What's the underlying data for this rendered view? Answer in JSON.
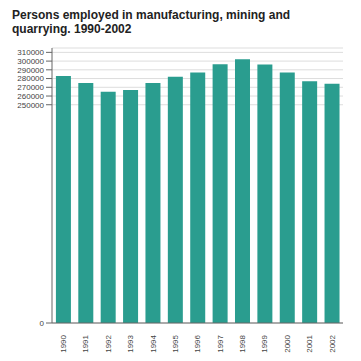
{
  "chart_data": {
    "type": "bar",
    "title": "Persons employed in manufacturing, mining and\nquarrying. 1990-2002",
    "categories": [
      "1990",
      "1991",
      "1992",
      "1993",
      "1994",
      "1995",
      "1996",
      "1997",
      "1998",
      "1999",
      "2000",
      "2001",
      "2002"
    ],
    "values": [
      283000,
      275000,
      265000,
      267000,
      275000,
      282000,
      287000,
      296500,
      302000,
      296000,
      287000,
      277000,
      274000
    ],
    "color": "#2a9d8f",
    "ylim": [
      0,
      315000
    ],
    "yticks": [
      0,
      250000,
      260000,
      270000,
      280000,
      290000,
      300000,
      310000
    ],
    "grid": true
  }
}
